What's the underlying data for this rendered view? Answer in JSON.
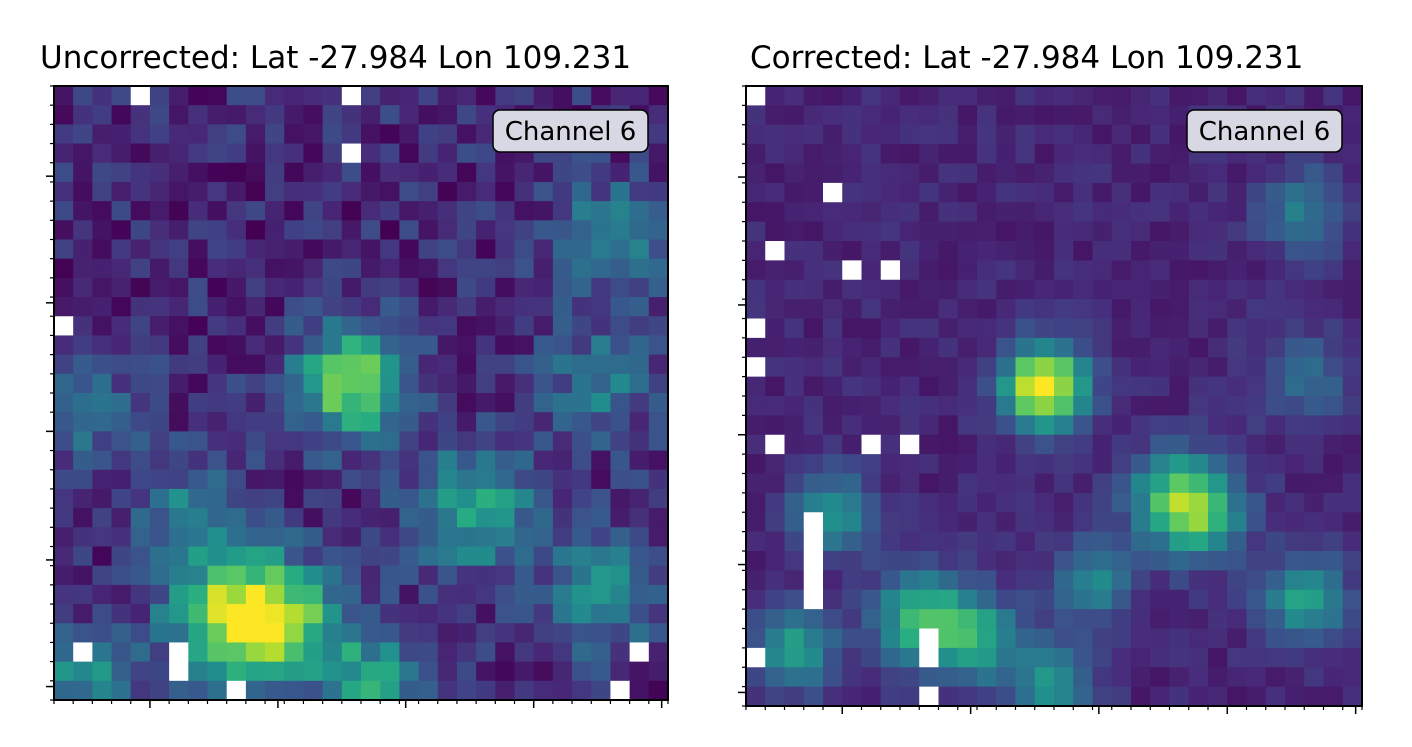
{
  "chart_data": [
    {
      "type": "heatmap",
      "title": "Uncorrected: Lat -27.984 Lon 109.231",
      "legend": "Channel 6",
      "legend_position": "top-right",
      "colormap": "viridis",
      "grid_size": [
        32,
        32
      ],
      "missing_color": "#ffffff",
      "background_level": 0.12,
      "blobs": [
        {
          "x": 15.5,
          "y": 15.5,
          "amp": 0.72,
          "sigma": 2.0
        },
        {
          "x": 9.5,
          "y": 27.5,
          "amp": 0.8,
          "sigma": 2.4
        },
        {
          "x": 12.5,
          "y": 28.0,
          "amp": 0.45,
          "sigma": 2.0
        },
        {
          "x": 22.0,
          "y": 22.0,
          "amp": 0.5,
          "sigma": 2.2
        },
        {
          "x": 29.0,
          "y": 8.0,
          "amp": 0.35,
          "sigma": 2.0
        },
        {
          "x": 28.5,
          "y": 15.5,
          "amp": 0.3,
          "sigma": 2.0
        },
        {
          "x": 28.5,
          "y": 26.5,
          "amp": 0.4,
          "sigma": 2.0
        },
        {
          "x": 7.0,
          "y": 22.0,
          "amp": 0.28,
          "sigma": 1.8
        },
        {
          "x": 1.0,
          "y": 17.0,
          "amp": 0.25,
          "sigma": 2.2
        },
        {
          "x": 1.5,
          "y": 30.5,
          "amp": 0.4,
          "sigma": 1.6
        },
        {
          "x": 16.5,
          "y": 31.0,
          "amp": 0.45,
          "sigma": 1.8
        }
      ],
      "noise_amp": 0.12,
      "seed": 7,
      "missing_pixels": [
        [
          4,
          0
        ],
        [
          15,
          0
        ],
        [
          15,
          3
        ],
        [
          0,
          12
        ],
        [
          1,
          29
        ],
        [
          6,
          29
        ],
        [
          6,
          30
        ],
        [
          30,
          29
        ],
        [
          29,
          31
        ],
        [
          9,
          31
        ]
      ],
      "x_minor_ticks": [
        0,
        1,
        2,
        3,
        4,
        5,
        6,
        7,
        8,
        9,
        10,
        11,
        12,
        13,
        14,
        15,
        16,
        17,
        18,
        19,
        20,
        21,
        22,
        23,
        24,
        25,
        26,
        27,
        28,
        29,
        30,
        31,
        32
      ],
      "x_major_ticks": [
        5,
        11.67,
        18.33,
        25,
        31.67
      ],
      "y_major_ticks": [
        4.7,
        11.3,
        18,
        24.7,
        31.3
      ],
      "xlabel": "",
      "ylabel": ""
    },
    {
      "type": "heatmap",
      "title": "Corrected: Lat -27.984 Lon 109.231",
      "legend": "Channel 6",
      "legend_position": "top-right",
      "colormap": "viridis",
      "grid_size": [
        32,
        32
      ],
      "missing_color": "#ffffff",
      "background_level": 0.11,
      "blobs": [
        {
          "x": 15.5,
          "y": 15.5,
          "amp": 0.95,
          "sigma": 1.5
        },
        {
          "x": 9.0,
          "y": 27.5,
          "amp": 0.55,
          "sigma": 1.7
        },
        {
          "x": 12.0,
          "y": 28.5,
          "amp": 0.45,
          "sigma": 1.6
        },
        {
          "x": 23.5,
          "y": 22.0,
          "amp": 0.55,
          "sigma": 1.7
        },
        {
          "x": 22.0,
          "y": 21.0,
          "amp": 0.35,
          "sigma": 1.7
        },
        {
          "x": 29.0,
          "y": 6.5,
          "amp": 0.3,
          "sigma": 1.6
        },
        {
          "x": 29.0,
          "y": 15.0,
          "amp": 0.25,
          "sigma": 1.7
        },
        {
          "x": 29.0,
          "y": 26.5,
          "amp": 0.48,
          "sigma": 1.5
        },
        {
          "x": 4.5,
          "y": 22.0,
          "amp": 0.4,
          "sigma": 1.5
        },
        {
          "x": 18.0,
          "y": 25.5,
          "amp": 0.35,
          "sigma": 1.5
        },
        {
          "x": 2.5,
          "y": 29.0,
          "amp": 0.45,
          "sigma": 1.5
        },
        {
          "x": 16.0,
          "y": 31.0,
          "amp": 0.4,
          "sigma": 1.5
        }
      ],
      "noise_amp": 0.05,
      "seed": 13,
      "missing_pixels": [
        [
          0,
          0
        ],
        [
          4,
          5
        ],
        [
          1,
          8
        ],
        [
          5,
          9
        ],
        [
          7,
          9
        ],
        [
          0,
          12
        ],
        [
          0,
          14
        ],
        [
          1,
          18
        ],
        [
          6,
          18
        ],
        [
          8,
          18
        ],
        [
          3,
          22
        ],
        [
          3,
          23
        ],
        [
          3,
          24
        ],
        [
          3,
          25
        ],
        [
          3,
          26
        ],
        [
          9,
          28
        ],
        [
          9,
          29
        ],
        [
          0,
          29
        ],
        [
          9,
          31
        ]
      ],
      "x_minor_ticks": [
        0,
        1,
        2,
        3,
        4,
        5,
        6,
        7,
        8,
        9,
        10,
        11,
        12,
        13,
        14,
        15,
        16,
        17,
        18,
        19,
        20,
        21,
        22,
        23,
        24,
        25,
        26,
        27,
        28,
        29,
        30,
        31,
        32
      ],
      "x_major_ticks": [
        5,
        11.67,
        18.33,
        25,
        31.67
      ],
      "y_major_ticks": [
        4.7,
        11.3,
        18,
        24.7,
        31.3
      ],
      "xlabel": "",
      "ylabel": ""
    }
  ]
}
